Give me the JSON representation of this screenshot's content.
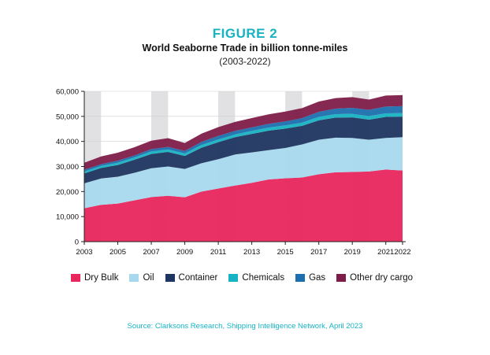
{
  "figure_label": "FIGURE 2",
  "source": "Source: Clarksons Research, Shipping Intelligence Network, April 2023",
  "chart_data": {
    "type": "area",
    "stacked": true,
    "title": "World Seaborne Trade in billion tonne-miles",
    "subtitle": "(2003-2022)",
    "xlabel": "",
    "ylabel": "",
    "x": [
      2003,
      2004,
      2005,
      2006,
      2007,
      2008,
      2009,
      2010,
      2011,
      2012,
      2013,
      2014,
      2015,
      2016,
      2017,
      2018,
      2019,
      2020,
      2021,
      2022
    ],
    "x_tick_labels": [
      "2003",
      "2005",
      "2007",
      "2009",
      "2011",
      "2013",
      "2015",
      "2017",
      "2019",
      "2021",
      "2022"
    ],
    "y_tick_labels": [
      "0",
      "10,000",
      "20,000",
      "30,000",
      "40,000",
      "50,000",
      "60,000"
    ],
    "ylim": [
      0,
      60000
    ],
    "grid": "alternating vertical bands",
    "legend_position": "bottom",
    "series": [
      {
        "name": "Dry Bulk",
        "color": "#e8265e",
        "values": [
          13300,
          14700,
          15200,
          16500,
          17800,
          18300,
          17700,
          20000,
          21200,
          22400,
          23500,
          24800,
          25300,
          25600,
          26900,
          27700,
          27800,
          28000,
          28800,
          28400
        ]
      },
      {
        "name": "Oil",
        "color": "#a8d8ed",
        "values": [
          10000,
          10500,
          10700,
          11000,
          11500,
          11700,
          11300,
          11300,
          11700,
          12400,
          12100,
          11700,
          12100,
          13200,
          13800,
          13800,
          13600,
          12700,
          12600,
          13300
        ]
      },
      {
        "name": "Container",
        "color": "#1d3560",
        "values": [
          3900,
          4200,
          4700,
          5200,
          5700,
          5800,
          5200,
          6200,
          6800,
          6900,
          7400,
          7800,
          7700,
          7400,
          7700,
          8000,
          8200,
          8000,
          8400,
          8200
        ]
      },
      {
        "name": "Chemicals",
        "color": "#17b3c3",
        "values": [
          800,
          800,
          900,
          900,
          1000,
          1000,
          1000,
          1100,
          1100,
          1100,
          1200,
          1200,
          1300,
          1300,
          1400,
          1400,
          1400,
          1400,
          1400,
          1400
        ]
      },
      {
        "name": "Gas",
        "color": "#1c6fae",
        "values": [
          700,
          700,
          800,
          800,
          900,
          1000,
          1000,
          1200,
          1400,
          1400,
          1400,
          1500,
          1600,
          1800,
          2000,
          2200,
          2400,
          2500,
          2700,
          2800
        ]
      },
      {
        "name": "Other dry cargo",
        "color": "#7e1c49",
        "values": [
          2800,
          3100,
          3200,
          3300,
          3400,
          3500,
          3200,
          3300,
          3500,
          3600,
          3700,
          3800,
          3900,
          4000,
          4100,
          4200,
          4300,
          4100,
          4400,
          4400
        ]
      }
    ]
  }
}
